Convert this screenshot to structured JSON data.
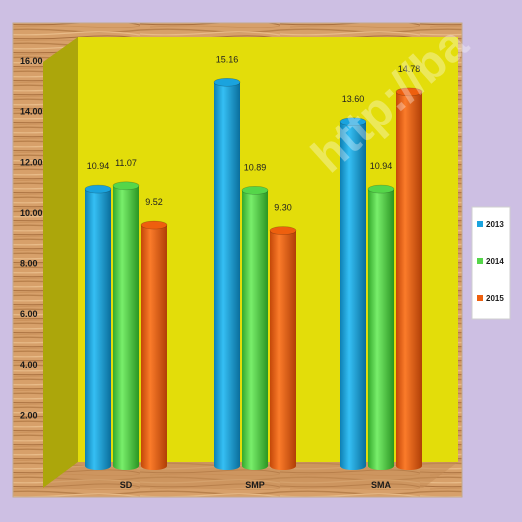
{
  "chart_data": {
    "type": "bar",
    "title": "",
    "xlabel": "",
    "ylabel": "",
    "categories": [
      "SD",
      "SMP",
      "SMA"
    ],
    "series": [
      {
        "name": "2013",
        "values": [
          10.94,
          15.16,
          13.6
        ],
        "labels": [
          "10.94",
          "15.16",
          "13.60"
        ],
        "color": "#1aa3de"
      },
      {
        "name": "2014",
        "values": [
          11.07,
          10.89,
          10.94
        ],
        "labels": [
          "11.07",
          "10.89",
          "10.94"
        ],
        "color": "#55d64a"
      },
      {
        "name": "2015",
        "values": [
          9.52,
          9.3,
          14.78
        ],
        "labels": [
          "9.52",
          "9.30",
          "14.78"
        ],
        "color": "#ee5f0e"
      }
    ],
    "yticks": [
      "2.00",
      "4.00",
      "6.00",
      "8.00",
      "10.00",
      "12.00",
      "14.00",
      "16.00"
    ],
    "ylim": [
      0,
      16
    ],
    "grid": false,
    "legend_position": "right",
    "colors": {
      "plot_back_wall": "#e3dd0a",
      "plot_side_wall": "#aaa40a",
      "floor_wood": "#d9a56e",
      "page_background": "#cdbfe3"
    }
  },
  "watermark": "http://ba"
}
